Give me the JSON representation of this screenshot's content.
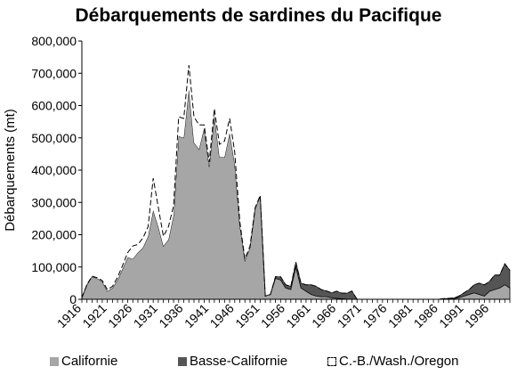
{
  "chart_data": {
    "type": "area",
    "title": "Débarquements de sardines du Pacifique",
    "xlabel": "",
    "ylabel": "Débarquements (mt)",
    "ylim": [
      0,
      800000
    ],
    "yticks": [
      0,
      100000,
      200000,
      300000,
      400000,
      500000,
      600000,
      700000,
      800000
    ],
    "ytick_labels": [
      "0",
      "100,000",
      "200,000",
      "300,000",
      "400,000",
      "500,000",
      "600,000",
      "700,000",
      "800,000"
    ],
    "xlim": [
      1916,
      2000
    ],
    "xticks": [
      1916,
      1921,
      1926,
      1931,
      1936,
      1941,
      1946,
      1951,
      1956,
      1961,
      1966,
      1971,
      1976,
      1981,
      1986,
      1991,
      1996
    ],
    "stacked": true,
    "grid": false,
    "legend_position": "bottom",
    "x": [
      1916,
      1917,
      1918,
      1919,
      1920,
      1921,
      1922,
      1923,
      1924,
      1925,
      1926,
      1927,
      1928,
      1929,
      1930,
      1931,
      1932,
      1933,
      1934,
      1935,
      1936,
      1937,
      1938,
      1939,
      1940,
      1941,
      1942,
      1943,
      1944,
      1945,
      1946,
      1947,
      1948,
      1949,
      1950,
      1951,
      1952,
      1953,
      1954,
      1955,
      1956,
      1957,
      1958,
      1959,
      1960,
      1961,
      1962,
      1963,
      1964,
      1965,
      1966,
      1967,
      1968,
      1969,
      1970,
      1971,
      1972,
      1973,
      1974,
      1975,
      1976,
      1977,
      1978,
      1979,
      1980,
      1981,
      1982,
      1983,
      1984,
      1985,
      1986,
      1987,
      1988,
      1989,
      1990,
      1991,
      1992,
      1993,
      1994,
      1995,
      1996,
      1997,
      1998,
      1999,
      2000
    ],
    "series": [
      {
        "name": "Californie",
        "color": "#a6a6a6",
        "values": [
          5000,
          45000,
          70000,
          65000,
          55000,
          25000,
          35000,
          60000,
          95000,
          130000,
          125000,
          145000,
          160000,
          195000,
          275000,
          225000,
          165000,
          185000,
          260000,
          505000,
          500000,
          650000,
          485000,
          465000,
          530000,
          410000,
          570000,
          440000,
          440000,
          515000,
          420000,
          230000,
          120000,
          160000,
          280000,
          320000,
          10000,
          15000,
          65000,
          60000,
          35000,
          30000,
          100000,
          35000,
          25000,
          15000,
          10000,
          8000,
          8000,
          5000,
          3000,
          2000,
          1000,
          500,
          200,
          100,
          100,
          100,
          100,
          100,
          100,
          100,
          100,
          100,
          100,
          100,
          100,
          100,
          100,
          100,
          100,
          1000,
          1500,
          2000,
          5000,
          10000,
          15000,
          20000,
          15000,
          10000,
          25000,
          30000,
          35000,
          45000,
          35000
        ]
      },
      {
        "name": "Basse-Californie",
        "color": "#555555",
        "values": [
          0,
          0,
          0,
          0,
          0,
          0,
          0,
          0,
          0,
          0,
          0,
          0,
          0,
          0,
          0,
          0,
          0,
          0,
          0,
          0,
          0,
          0,
          0,
          0,
          0,
          0,
          0,
          0,
          0,
          0,
          0,
          0,
          0,
          0,
          0,
          0,
          0,
          0,
          5000,
          10000,
          10000,
          10000,
          15000,
          15000,
          20000,
          30000,
          30000,
          22000,
          18000,
          15000,
          22000,
          17000,
          18000,
          25000,
          0,
          0,
          0,
          0,
          0,
          0,
          0,
          0,
          0,
          0,
          0,
          0,
          0,
          0,
          0,
          0,
          0,
          1000,
          1500,
          2000,
          5000,
          10000,
          15000,
          25000,
          35000,
          35000,
          30000,
          45000,
          40000,
          65000,
          55000
        ]
      },
      {
        "name": "C.-B./Wash./Oregon",
        "color": "#ffffff",
        "values": [
          0,
          1000,
          1500,
          2000,
          3000,
          5000,
          5000,
          8000,
          10000,
          15000,
          40000,
          25000,
          30000,
          30000,
          100000,
          60000,
          30000,
          40000,
          30000,
          60000,
          60000,
          75000,
          80000,
          75000,
          10000,
          15000,
          20000,
          40000,
          50000,
          45000,
          35000,
          10000,
          5000,
          5000,
          3000,
          2000,
          0,
          0,
          0,
          0,
          0,
          0,
          0,
          0,
          0,
          0,
          0,
          0,
          0,
          0,
          0,
          0,
          0,
          0,
          0,
          0,
          0,
          0,
          0,
          0,
          0,
          0,
          0,
          0,
          0,
          0,
          0,
          0,
          0,
          0,
          0,
          0,
          0,
          0,
          0,
          0,
          0,
          0,
          0,
          0,
          0,
          0,
          0,
          0,
          0
        ]
      }
    ]
  }
}
